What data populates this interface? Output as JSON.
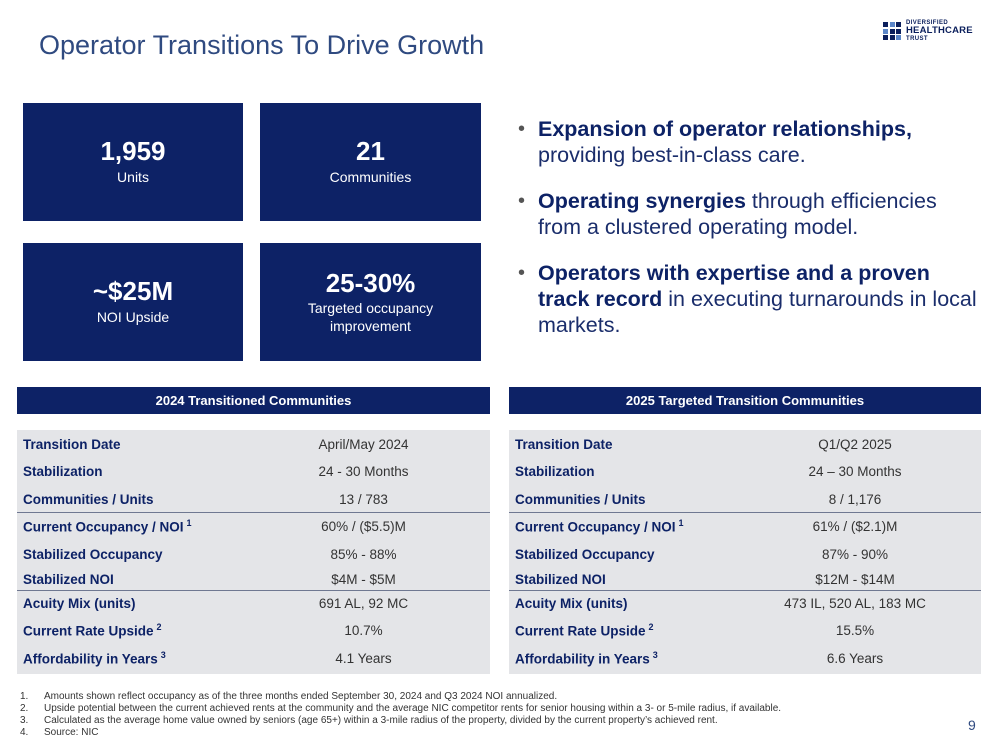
{
  "title": "Operator Transitions To Drive Growth",
  "logo": {
    "line1": "DIVERSIFIED",
    "line2": "HEALTHCARE",
    "line3": "TRUST"
  },
  "stats": [
    {
      "value": "1,959",
      "label": "Units"
    },
    {
      "value": "21",
      "label": "Communities"
    },
    {
      "value": "~$25M",
      "label": "NOI Upside"
    },
    {
      "value": "25-30%",
      "label": "Targeted occupancy improvement"
    }
  ],
  "bullets": [
    {
      "bold": "Expansion of operator relationships,",
      "normal": " providing best-in-class care."
    },
    {
      "bold": "Operating synergies",
      "normal": " through efficiencies from a clustered operating model."
    },
    {
      "bold": "Operators with expertise and a proven track record",
      "normal": " in executing turnarounds in local markets."
    }
  ],
  "table_2024": {
    "header": "2024 Transitioned Communities",
    "rows": [
      {
        "label": "Transition Date",
        "value": "April/May 2024"
      },
      {
        "label": "Stabilization",
        "value": "24 - 30 Months"
      },
      {
        "label": "Communities / Units",
        "value": "13 / 783"
      },
      {
        "label": "Current Occupancy / NOI",
        "sup": "1",
        "value": "60% / ($5.5)M"
      },
      {
        "label": "Stabilized Occupancy",
        "value": "85% - 88%"
      },
      {
        "label": "Stabilized NOI",
        "value": "$4M - $5M"
      },
      {
        "label": "Acuity Mix (units)",
        "value": "691 AL, 92 MC"
      },
      {
        "label": "Current Rate Upside",
        "sup": "2",
        "value": "10.7%"
      },
      {
        "label": "Affordability in Years",
        "sup": "3",
        "value": "4.1 Years"
      }
    ]
  },
  "table_2025": {
    "header": "2025 Targeted Transition Communities",
    "rows": [
      {
        "label": "Transition Date",
        "value": "Q1/Q2 2025"
      },
      {
        "label": "Stabilization",
        "value": "24 – 30 Months"
      },
      {
        "label": "Communities / Units",
        "value": "8 / 1,176"
      },
      {
        "label": "Current Occupancy / NOI",
        "sup": "1",
        "value": "61% / ($2.1)M"
      },
      {
        "label": "Stabilized Occupancy",
        "value": "87% - 90%"
      },
      {
        "label": "Stabilized NOI",
        "value": "$12M - $14M"
      },
      {
        "label": "Acuity Mix (units)",
        "value": "473 IL, 520 AL, 183 MC"
      },
      {
        "label": "Current Rate Upside",
        "sup": "2",
        "value": "15.5%"
      },
      {
        "label": "Affordability in Years",
        "sup": "3",
        "value": "6.6 Years"
      }
    ]
  },
  "footnotes": [
    {
      "num": "1.",
      "text": "Amounts shown reflect occupancy as of the three months ended September 30, 2024 and Q3 2024 NOI annualized."
    },
    {
      "num": "2.",
      "text": "Upside potential between the current achieved rents at the community and the average NIC competitor rents for senior housing within a 3- or 5-mile radius, if available."
    },
    {
      "num": "3.",
      "text": "Calculated as the average home value owned by seniors (age 65+) within a 3-mile radius of the property, divided by the current property’s achieved rent."
    },
    {
      "num": "4.",
      "text": "Source: NIC"
    }
  ],
  "page_number": "9"
}
